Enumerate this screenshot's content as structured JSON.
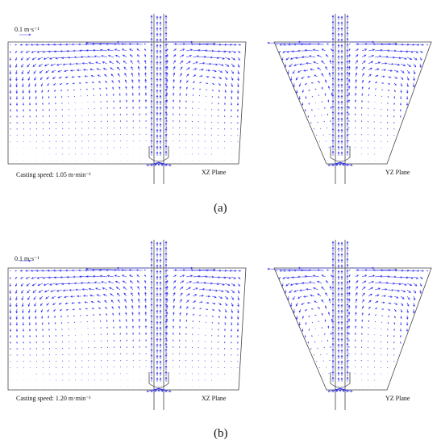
{
  "panels": [
    {
      "scale_label": "0.1 m·s⁻¹",
      "casting_speed": "Casting speed: 1.05 m·min⁻¹",
      "left_plane": "XZ Plane",
      "right_plane": "YZ Plane",
      "caption": "(a)"
    },
    {
      "scale_label": "0.1 m·s⁻¹",
      "casting_speed": "Casting speed: 1.20 m·min⁻¹",
      "left_plane": "XZ Plane",
      "right_plane": "YZ Plane",
      "caption": "(b)"
    }
  ]
}
